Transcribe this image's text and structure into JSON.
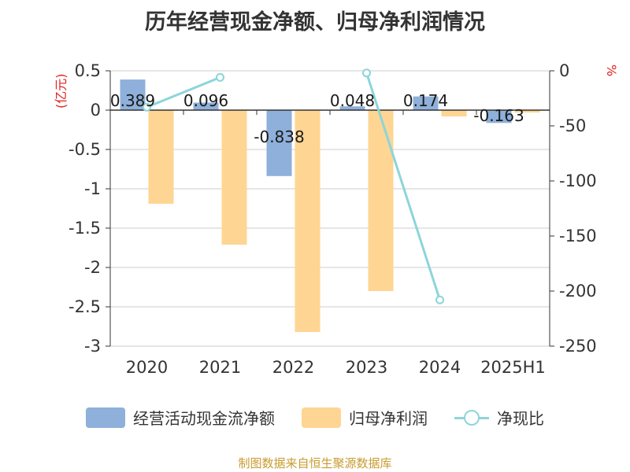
{
  "title": "历年经营现金净额、归母净利润情况",
  "left_unit": "(亿元)",
  "right_unit": "%",
  "legend": [
    "经营活动现金流净额",
    "归母净利润",
    "净现比"
  ],
  "source": "制图数据来自恒生聚源数据库",
  "colors": {
    "cash": "#8eb0da",
    "profit": "#ffd593",
    "ratio": "#8dd5d9"
  },
  "chart_data": {
    "type": "bar",
    "categories": [
      "2020",
      "2021",
      "2022",
      "2023",
      "2024",
      "2025H1"
    ],
    "series": [
      {
        "name": "经营活动现金流净额",
        "axis": "left",
        "values": [
          0.389,
          0.096,
          -0.838,
          0.048,
          0.174,
          -0.163
        ],
        "labels": [
          "0.389",
          "0.096",
          "-0.838",
          "0.048",
          "0.174",
          "-0.163"
        ]
      },
      {
        "name": "归母净利润",
        "axis": "left",
        "values": [
          -1.19,
          -1.71,
          -2.82,
          -2.3,
          -0.08,
          -0.03
        ]
      },
      {
        "name": "净现比",
        "type": "line",
        "axis": "right",
        "values": [
          -33,
          -6,
          null,
          -2,
          -208,
          null
        ]
      }
    ],
    "left_axis": {
      "ylim": [
        -3,
        0.5
      ],
      "ticks": [
        "0.5",
        "0",
        "-0.5",
        "-1",
        "-1.5",
        "-2",
        "-2.5",
        "-3"
      ]
    },
    "right_axis": {
      "ylim": [
        -250,
        0
      ],
      "ticks": [
        "0",
        "-50",
        "-100",
        "-150",
        "-200",
        "-250"
      ]
    },
    "grid": true,
    "legend_position": "bottom"
  }
}
